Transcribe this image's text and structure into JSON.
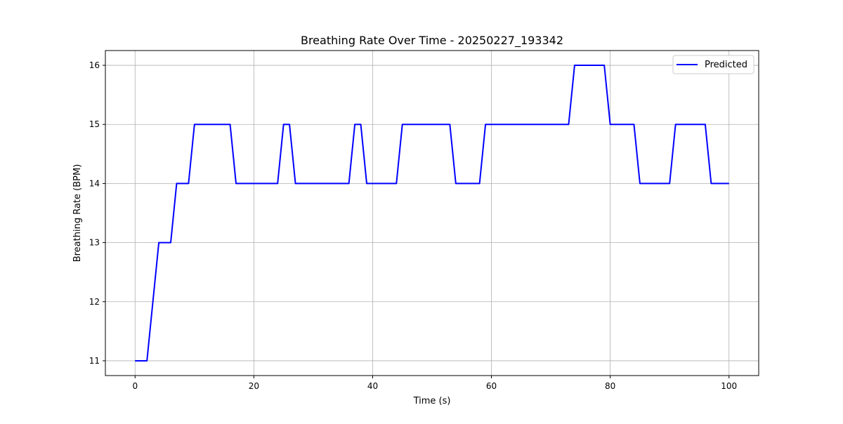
{
  "chart_data": {
    "type": "line",
    "title": "Breathing Rate Over Time - 20250227_193342",
    "xlabel": "Time (s)",
    "ylabel": "Breathing Rate (BPM)",
    "xlim": [
      -5,
      105
    ],
    "ylim": [
      10.75,
      16.25
    ],
    "x_ticks": [
      0,
      20,
      40,
      60,
      80,
      100
    ],
    "y_ticks": [
      11,
      12,
      13,
      14,
      15,
      16
    ],
    "grid": true,
    "legend_position": "top-right",
    "series": [
      {
        "name": "Predicted",
        "color": "#0000ff",
        "x": [
          0,
          2,
          4,
          6,
          7,
          9,
          10,
          16,
          17,
          24,
          25,
          26,
          27,
          36,
          37,
          38,
          39,
          44,
          45,
          53,
          54,
          58,
          59,
          73,
          74,
          79,
          80,
          84,
          85,
          90,
          91,
          96,
          97,
          100
        ],
        "y": [
          11,
          11,
          13,
          13,
          14,
          14,
          15,
          15,
          14,
          14,
          15,
          15,
          14,
          14,
          15,
          15,
          14,
          14,
          15,
          15,
          14,
          14,
          15,
          15,
          16,
          16,
          15,
          15,
          14,
          14,
          15,
          15,
          14,
          14
        ]
      }
    ]
  }
}
